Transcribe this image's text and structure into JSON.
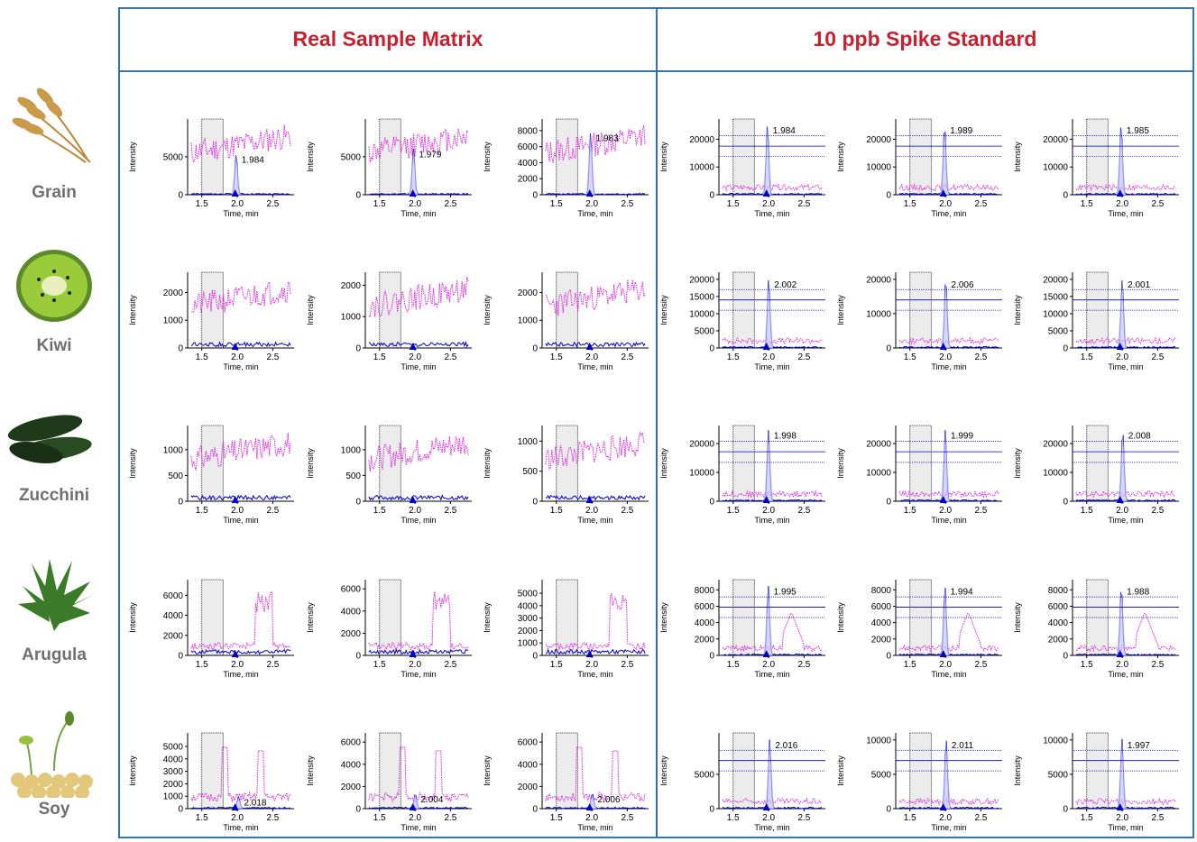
{
  "headers": {
    "left": "Real Sample Matrix",
    "right": "10 ppb Spike Standard"
  },
  "rows": [
    {
      "label": "Grain",
      "image": "wheat-ears-photo"
    },
    {
      "label": "Kiwi",
      "image": "kiwi-half-photo"
    },
    {
      "label": "Zucchini",
      "image": "zucchini-photo"
    },
    {
      "label": "Arugula",
      "image": "arugula-leaves-photo"
    },
    {
      "label": "Soy",
      "image": "soybean-sprouts-photo"
    }
  ],
  "axis_text": {
    "xlabel": "Time, min",
    "ylabel": "Intensity"
  },
  "colors": {
    "header_text": "#c8202f",
    "frame": "#2e75b6",
    "analyte_trace": "#0000cc",
    "matrix_trace": "#e020e0",
    "label_text": "#707070"
  },
  "chart_data": {
    "type": "line",
    "description_axes": {
      "xlim": [
        1.3,
        2.8
      ],
      "xticks": [
        1.5,
        2.0,
        2.5
      ],
      "shaded_window": [
        1.5,
        1.8
      ]
    },
    "grid": "30 panels, 5 rows x 6 columns",
    "panels": [
      {
        "row": 0,
        "col": 0,
        "yticks": [
          0,
          5000
        ],
        "ymax": 9500,
        "peak_rt": 1.984,
        "peak_height": 5300,
        "peak_label": "1.984",
        "mode": "matrix",
        "seed": 11
      },
      {
        "row": 0,
        "col": 1,
        "yticks": [
          0,
          5000
        ],
        "ymax": 9500,
        "peak_rt": 1.979,
        "peak_height": 6000,
        "peak_label": "1.979",
        "mode": "matrix",
        "seed": 12
      },
      {
        "row": 0,
        "col": 2,
        "yticks": [
          0,
          2000,
          4000,
          6000,
          8000
        ],
        "ymax": 9000,
        "peak_rt": 1.983,
        "peak_height": 7700,
        "peak_label": "1.983",
        "mode": "matrix",
        "seed": 13
      },
      {
        "row": 0,
        "col": 3,
        "yticks": [
          0,
          10000,
          20000
        ],
        "ymax": 26000,
        "peak_rt": 1.984,
        "peak_height": 25000,
        "peak_label": "1.984",
        "mode": "spike",
        "seed": 14
      },
      {
        "row": 0,
        "col": 4,
        "yticks": [
          0,
          10000,
          20000
        ],
        "ymax": 26000,
        "peak_rt": 1.989,
        "peak_height": 25000,
        "peak_label": "1.989",
        "mode": "spike",
        "seed": 15
      },
      {
        "row": 0,
        "col": 5,
        "yticks": [
          0,
          10000,
          20000
        ],
        "ymax": 26000,
        "peak_rt": 1.985,
        "peak_height": 25000,
        "peak_label": "1.985",
        "mode": "spike",
        "seed": 16
      },
      {
        "row": 1,
        "col": 0,
        "yticks": [
          0,
          1000,
          2000
        ],
        "ymax": 2600,
        "peak_rt": null,
        "peak_height": 0,
        "peak_label": "",
        "mode": "nopeak",
        "seed": 21
      },
      {
        "row": 1,
        "col": 1,
        "yticks": [
          0,
          1000,
          2000
        ],
        "ymax": 2300,
        "peak_rt": null,
        "peak_height": 0,
        "peak_label": "",
        "mode": "nopeak",
        "seed": 22
      },
      {
        "row": 1,
        "col": 2,
        "yticks": [
          0,
          1000,
          2000
        ],
        "ymax": 2600,
        "peak_rt": null,
        "peak_height": 0,
        "peak_label": "",
        "mode": "nopeak",
        "seed": 23
      },
      {
        "row": 1,
        "col": 3,
        "yticks": [
          0,
          5000,
          10000,
          15000,
          20000
        ],
        "ymax": 21000,
        "peak_rt": 2.002,
        "peak_height": 20000,
        "peak_label": "2.002",
        "mode": "spike",
        "seed": 24
      },
      {
        "row": 1,
        "col": 4,
        "yticks": [
          0,
          10000,
          20000
        ],
        "ymax": 21000,
        "peak_rt": 2.006,
        "peak_height": 20000,
        "peak_label": "2.006",
        "mode": "spike",
        "seed": 25
      },
      {
        "row": 1,
        "col": 5,
        "yticks": [
          0,
          5000,
          10000,
          15000,
          20000
        ],
        "ymax": 21000,
        "peak_rt": 2.001,
        "peak_height": 20000,
        "peak_label": "2.001",
        "mode": "spike",
        "seed": 26
      },
      {
        "row": 2,
        "col": 0,
        "yticks": [
          0,
          500,
          1000
        ],
        "ymax": 1400,
        "peak_rt": null,
        "peak_height": 0,
        "peak_label": "",
        "mode": "nopeak",
        "seed": 31
      },
      {
        "row": 2,
        "col": 1,
        "yticks": [
          0,
          500,
          1000
        ],
        "ymax": 1400,
        "peak_rt": null,
        "peak_height": 0,
        "peak_label": "",
        "mode": "nopeak",
        "seed": 32
      },
      {
        "row": 2,
        "col": 2,
        "yticks": [
          0,
          500,
          1000
        ],
        "ymax": 1200,
        "peak_rt": null,
        "peak_height": 0,
        "peak_label": "",
        "mode": "nopeak",
        "seed": 33
      },
      {
        "row": 2,
        "col": 3,
        "yticks": [
          0,
          10000,
          20000
        ],
        "ymax": 25000,
        "peak_rt": 1.998,
        "peak_height": 24500,
        "peak_label": "1.998",
        "mode": "spike",
        "seed": 34
      },
      {
        "row": 2,
        "col": 4,
        "yticks": [
          0,
          10000,
          20000
        ],
        "ymax": 25000,
        "peak_rt": 1.999,
        "peak_height": 24500,
        "peak_label": "1.999",
        "mode": "spike",
        "seed": 35
      },
      {
        "row": 2,
        "col": 5,
        "yticks": [
          0,
          10000,
          20000
        ],
        "ymax": 25000,
        "peak_rt": 2.008,
        "peak_height": 24500,
        "peak_label": "2.008",
        "mode": "spike",
        "seed": 36
      },
      {
        "row": 3,
        "col": 0,
        "yticks": [
          0,
          2000,
          4000,
          6000
        ],
        "ymax": 7200,
        "peak_rt": null,
        "peak_height": 0,
        "peak_label": "",
        "mode": "nopeak",
        "seed": 41
      },
      {
        "row": 3,
        "col": 1,
        "yticks": [
          0,
          2000,
          4000,
          6000
        ],
        "ymax": 6500,
        "peak_rt": null,
        "peak_height": 0,
        "peak_label": "",
        "mode": "nopeak",
        "seed": 42
      },
      {
        "row": 3,
        "col": 2,
        "yticks": [
          0,
          1000,
          2000,
          3000,
          4000,
          5000
        ],
        "ymax": 5800,
        "peak_rt": null,
        "peak_height": 0,
        "peak_label": "",
        "mode": "nopeak",
        "seed": 43
      },
      {
        "row": 3,
        "col": 3,
        "yticks": [
          0,
          2000,
          4000,
          6000,
          8000
        ],
        "ymax": 8800,
        "peak_rt": 1.995,
        "peak_height": 8400,
        "peak_label": "1.995",
        "mode": "spike",
        "seed": 44
      },
      {
        "row": 3,
        "col": 4,
        "yticks": [
          0,
          2000,
          4000,
          6000,
          8000
        ],
        "ymax": 8800,
        "peak_rt": 1.994,
        "peak_height": 8400,
        "peak_label": "1.994",
        "mode": "spike",
        "seed": 45
      },
      {
        "row": 3,
        "col": 5,
        "yticks": [
          0,
          2000,
          4000,
          6000,
          8000
        ],
        "ymax": 8800,
        "peak_rt": 1.988,
        "peak_height": 8400,
        "peak_label": "1.988",
        "mode": "spike",
        "seed": 46
      },
      {
        "row": 4,
        "col": 0,
        "yticks": [
          0,
          1000,
          2000,
          3000,
          4000,
          5000
        ],
        "ymax": 5800,
        "peak_rt": 2.018,
        "peak_height": 900,
        "peak_label": "2.018",
        "mode": "soy",
        "seed": 51
      },
      {
        "row": 4,
        "col": 1,
        "yticks": [
          0,
          2000,
          4000,
          6000
        ],
        "ymax": 6500,
        "peak_rt": 2.004,
        "peak_height": 1300,
        "peak_label": "2.004",
        "mode": "soy",
        "seed": 52
      },
      {
        "row": 4,
        "col": 2,
        "yticks": [
          0,
          2000,
          4000,
          6000
        ],
        "ymax": 6500,
        "peak_rt": 2.006,
        "peak_height": 1300,
        "peak_label": "2.006",
        "mode": "soy",
        "seed": 53
      },
      {
        "row": 4,
        "col": 3,
        "yticks": [
          0,
          5000
        ],
        "ymax": 10500,
        "peak_rt": 2.016,
        "peak_height": 10000,
        "peak_label": "2.016",
        "mode": "spike",
        "seed": 54
      },
      {
        "row": 4,
        "col": 4,
        "yticks": [
          0,
          5000,
          10000
        ],
        "ymax": 10500,
        "peak_rt": 2.011,
        "peak_height": 10000,
        "peak_label": "2.011",
        "mode": "spike",
        "seed": 55
      },
      {
        "row": 4,
        "col": 5,
        "yticks": [
          0,
          5000,
          10000
        ],
        "ymax": 10500,
        "peak_rt": 1.997,
        "peak_height": 10000,
        "peak_label": "1.997",
        "mode": "spike",
        "seed": 56
      }
    ]
  }
}
